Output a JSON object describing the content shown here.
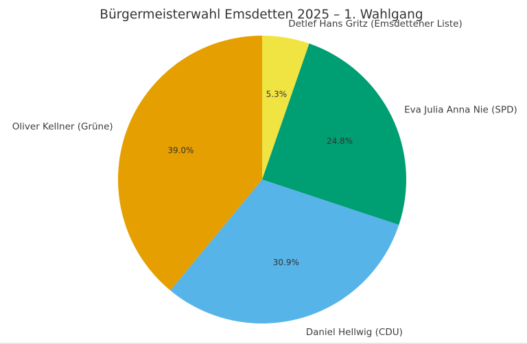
{
  "chart_data": {
    "type": "pie",
    "title": "Bürgermeisterwahl Emsdetten 2025 – 1. Wahlgang",
    "start_angle_deg": 90,
    "direction": "clockwise",
    "categories": [
      "Detlef Hans Gritz (Emsdettener Liste)",
      "Eva Julia Anna Nie (SPD)",
      "Daniel Hellwig (CDU)",
      "Oliver Kellner (Grüne)"
    ],
    "values": [
      5.3,
      24.8,
      30.9,
      39.0
    ],
    "value_labels": [
      "5.3%",
      "24.8%",
      "30.9%",
      "39.0%"
    ],
    "colors": [
      "#F0E442",
      "#009E73",
      "#56B4E9",
      "#E69F00"
    ],
    "legend": "none",
    "xlabel": "",
    "ylabel": ""
  }
}
